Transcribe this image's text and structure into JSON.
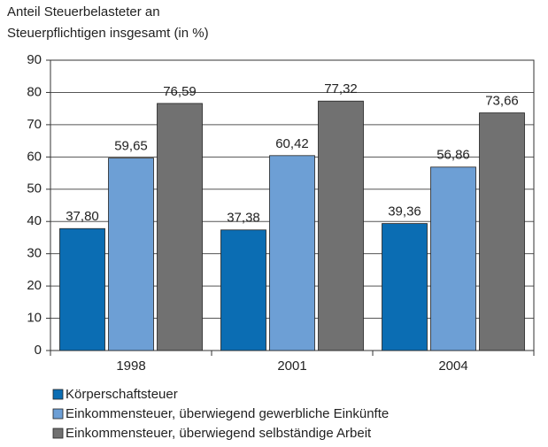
{
  "chart_data": {
    "type": "bar",
    "title": [
      "Anteil Steuerbelasteter an",
      "Steuerpflichtigen insgesamt (in %)"
    ],
    "categories": [
      "1998",
      "2001",
      "2004"
    ],
    "series": [
      {
        "name": "Körperschaftsteuer",
        "color": "#0b6db3",
        "values": [
          37.8,
          37.38,
          39.36
        ],
        "value_labels": [
          "37,80",
          "37,38",
          "39,36"
        ]
      },
      {
        "name": "Einkommensteuer, überwiegend gewerbliche Einkünfte",
        "color": "#6d9fd5",
        "values": [
          59.65,
          60.42,
          56.86
        ],
        "value_labels": [
          "59,65",
          "60,42",
          "56,86"
        ]
      },
      {
        "name": "Einkommensteuer, überwiegend selbständige Arbeit",
        "color": "#717171",
        "values": [
          76.59,
          77.32,
          73.66
        ],
        "value_labels": [
          "76,59",
          "77,32",
          "73,66"
        ]
      }
    ],
    "ylim": [
      0,
      90
    ],
    "yticks": [
      0,
      10,
      20,
      30,
      40,
      50,
      60,
      70,
      80,
      90
    ],
    "grid": true
  }
}
